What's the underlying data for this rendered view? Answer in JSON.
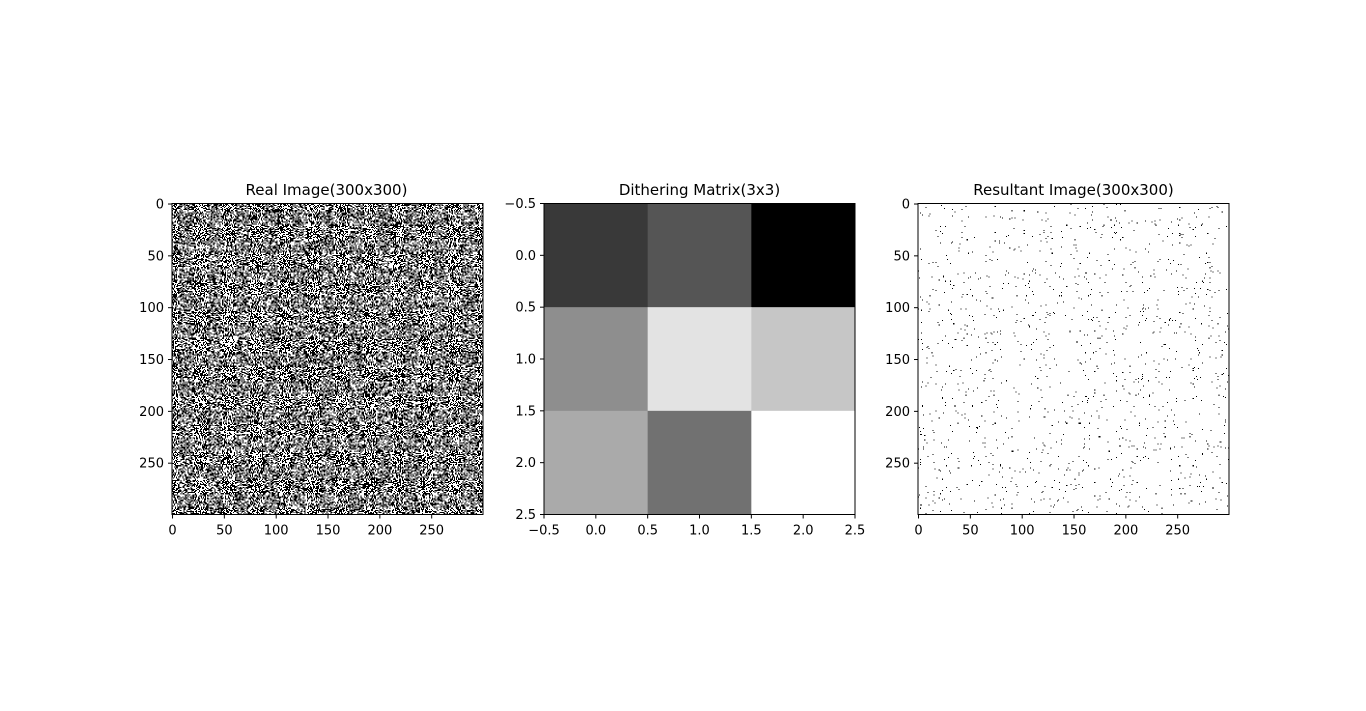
{
  "figure": {
    "background": "#ffffff"
  },
  "chart_data": [
    {
      "type": "heatmap",
      "title": "Real Image(300x300)",
      "colormap": "gray",
      "pattern": "dense random black and white noise",
      "image_size": [
        300,
        300
      ],
      "xlim": [
        -0.5,
        299.5
      ],
      "ylim": [
        299.5,
        -0.5
      ],
      "xticks": [
        0,
        50,
        100,
        150,
        200,
        250
      ],
      "yticks": [
        0,
        50,
        100,
        150,
        200,
        250
      ],
      "xticklabels": [
        "0",
        "50",
        "100",
        "150",
        "200",
        "250"
      ],
      "yticklabels": [
        "0",
        "50",
        "100",
        "150",
        "200",
        "250"
      ],
      "white_fraction": 0.5
    },
    {
      "type": "heatmap",
      "title": "Dithering Matrix(3x3)",
      "colormap": "gray",
      "image_size": [
        3,
        3
      ],
      "values": [
        [
          2,
          3,
          0
        ],
        [
          5,
          8,
          7
        ],
        [
          6,
          4,
          9
        ]
      ],
      "vmin": 0,
      "vmax": 9,
      "xlim": [
        -0.5,
        2.5
      ],
      "ylim": [
        2.5,
        -0.5
      ],
      "xticks": [
        -0.5,
        0.0,
        0.5,
        1.0,
        1.5,
        2.0,
        2.5
      ],
      "yticks": [
        -0.5,
        0.0,
        0.5,
        1.0,
        1.5,
        2.0,
        2.5
      ],
      "xticklabels": [
        "−0.5",
        "0.0",
        "0.5",
        "1.0",
        "1.5",
        "2.0",
        "2.5"
      ],
      "yticklabels": [
        "−0.5",
        "0.0",
        "0.5",
        "1.0",
        "1.5",
        "2.0",
        "2.5"
      ]
    },
    {
      "type": "heatmap",
      "title": "Resultant Image(300x300)",
      "colormap": "gray",
      "pattern": "sparse black dots on white",
      "image_size": [
        300,
        300
      ],
      "xlim": [
        -0.5,
        299.5
      ],
      "ylim": [
        299.5,
        -0.5
      ],
      "xticks": [
        0,
        50,
        100,
        150,
        200,
        250
      ],
      "yticks": [
        0,
        50,
        100,
        150,
        200,
        250
      ],
      "xticklabels": [
        "0",
        "50",
        "100",
        "150",
        "200",
        "250"
      ],
      "yticklabels": [
        "0",
        "50",
        "100",
        "150",
        "200",
        "250"
      ],
      "black_fraction": 0.015
    }
  ]
}
